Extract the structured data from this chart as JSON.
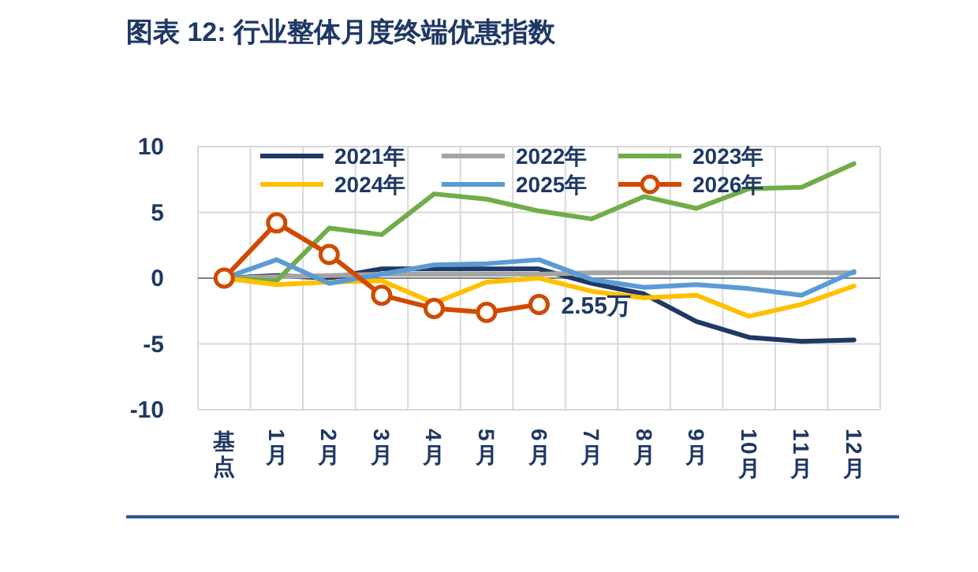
{
  "chart_data": {
    "type": "line",
    "title": "图表 12: 行业整体月度终端优惠指数",
    "categories": [
      "基点",
      "1月",
      "2月",
      "3月",
      "4月",
      "5月",
      "6月",
      "7月",
      "8月",
      "9月",
      "10月",
      "11月",
      "12月"
    ],
    "series": [
      {
        "name": "2021年",
        "color": "#1f3864",
        "values": [
          0,
          0.2,
          0,
          0.7,
          0.7,
          0.7,
          0.7,
          -0.4,
          -1.2,
          -3.3,
          -4.5,
          -4.8,
          -4.7
        ]
      },
      {
        "name": "2022年",
        "color": "#a5a5a5",
        "values": [
          0,
          0.1,
          0.2,
          0.3,
          0.3,
          0.3,
          0.3,
          0.4,
          0.4,
          0.4,
          0.4,
          0.4,
          0.4
        ]
      },
      {
        "name": "2023年",
        "color": "#70ad47",
        "values": [
          0,
          -0.2,
          3.8,
          3.3,
          6.4,
          6.0,
          5.1,
          4.5,
          6.2,
          5.3,
          6.8,
          6.9,
          8.7
        ]
      },
      {
        "name": "2024年",
        "color": "#ffc000",
        "values": [
          0,
          -0.5,
          -0.3,
          -0.2,
          -1.9,
          -0.3,
          0,
          -1.0,
          -1.5,
          -1.3,
          -2.9,
          -2.0,
          -0.6
        ]
      },
      {
        "name": "2025年",
        "color": "#5b9bd5",
        "values": [
          0,
          1.4,
          -0.4,
          0.3,
          1.0,
          1.1,
          1.4,
          -0.1,
          -0.7,
          -0.5,
          -0.8,
          -1.3,
          0.5
        ]
      },
      {
        "name": "2026年",
        "color": "#d04a02",
        "marker": "circle",
        "values": [
          0,
          4.2,
          1.8,
          -1.3,
          -2.3,
          -2.6,
          -2.0,
          null,
          null,
          null,
          null,
          null,
          null
        ]
      }
    ],
    "ylim": [
      -10,
      10
    ],
    "yticks": [
      -10,
      -5,
      0,
      5,
      10
    ],
    "grid": true,
    "legend": "top",
    "marker": "none",
    "line_style": "solid",
    "annotations": [
      {
        "text": "2.55万",
        "x": "6月",
        "y": -2.0
      }
    ]
  }
}
